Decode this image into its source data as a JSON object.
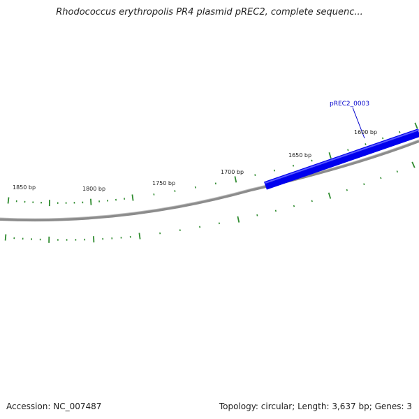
{
  "title": "Rhodococcus erythropolis PR4 plasmid pREC2, complete sequenc...",
  "footer": {
    "accession": "Accession: NC_007487",
    "summary": "Topology: circular; Length: 3,637 bp; Genes: 3"
  },
  "colors": {
    "backbone": "#8c8c8c",
    "gene": "#0000ee",
    "tick": "#2e8b2e",
    "gene_label": "#0000cc"
  },
  "ticks": [
    {
      "label": "1850 bp"
    },
    {
      "label": "1800 bp"
    },
    {
      "label": "1750 bp"
    },
    {
      "label": "1700 bp"
    },
    {
      "label": "1650 bp"
    },
    {
      "label": "1600 bp"
    }
  ],
  "genes": [
    {
      "name": "pREC2_0003"
    }
  ]
}
